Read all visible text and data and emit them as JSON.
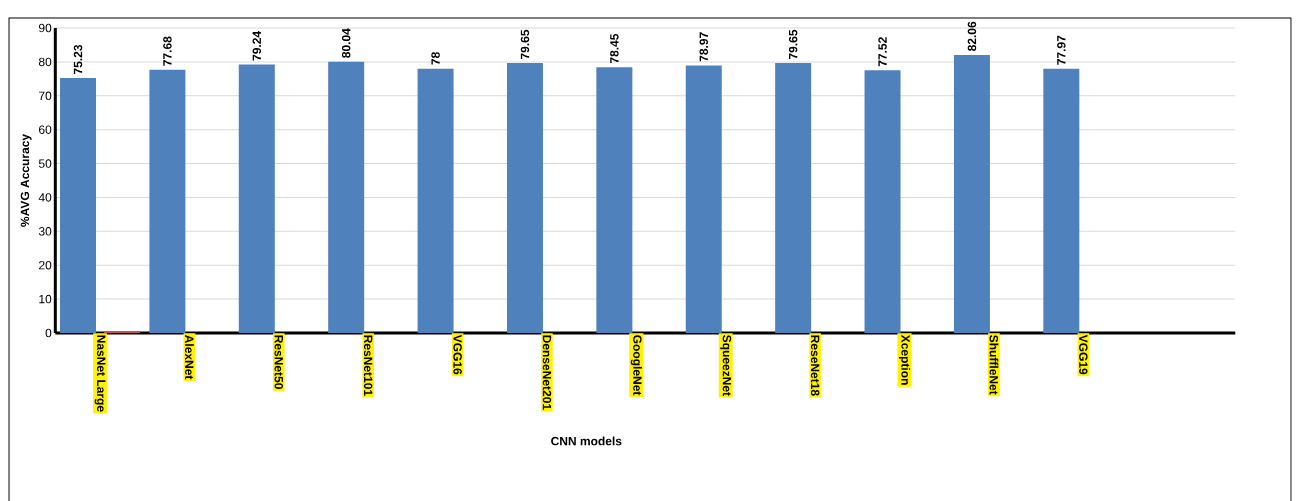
{
  "chart_data": {
    "type": "bar",
    "xlabel": "CNN models",
    "ylabel": "%AVG Accuracy",
    "categories": [
      "NasNet Large",
      "AlexNet",
      "ResNet50",
      "ResNet101",
      "VGG16",
      "DenseNet201",
      "GoogleNet",
      "SqueezNet",
      "ReseNet18",
      "Xception",
      "ShuffleNet",
      "VGG19"
    ],
    "series": [
      {
        "color": "#4f81bd",
        "values": [
          75.23,
          77.68,
          79.24,
          80.04,
          78,
          79.65,
          78.45,
          78.97,
          79.65,
          77.52,
          82.06,
          77.97
        ],
        "data_labels": true
      },
      {
        "color": "#c0504d",
        "values": [
          0.5,
          null,
          null,
          null,
          null,
          null,
          null,
          null,
          null,
          null,
          null,
          null
        ]
      }
    ],
    "ylim": [
      0,
      90
    ],
    "yticks": [
      0,
      10,
      20,
      30,
      40,
      50,
      60,
      70,
      80,
      90
    ],
    "grid": "y"
  }
}
